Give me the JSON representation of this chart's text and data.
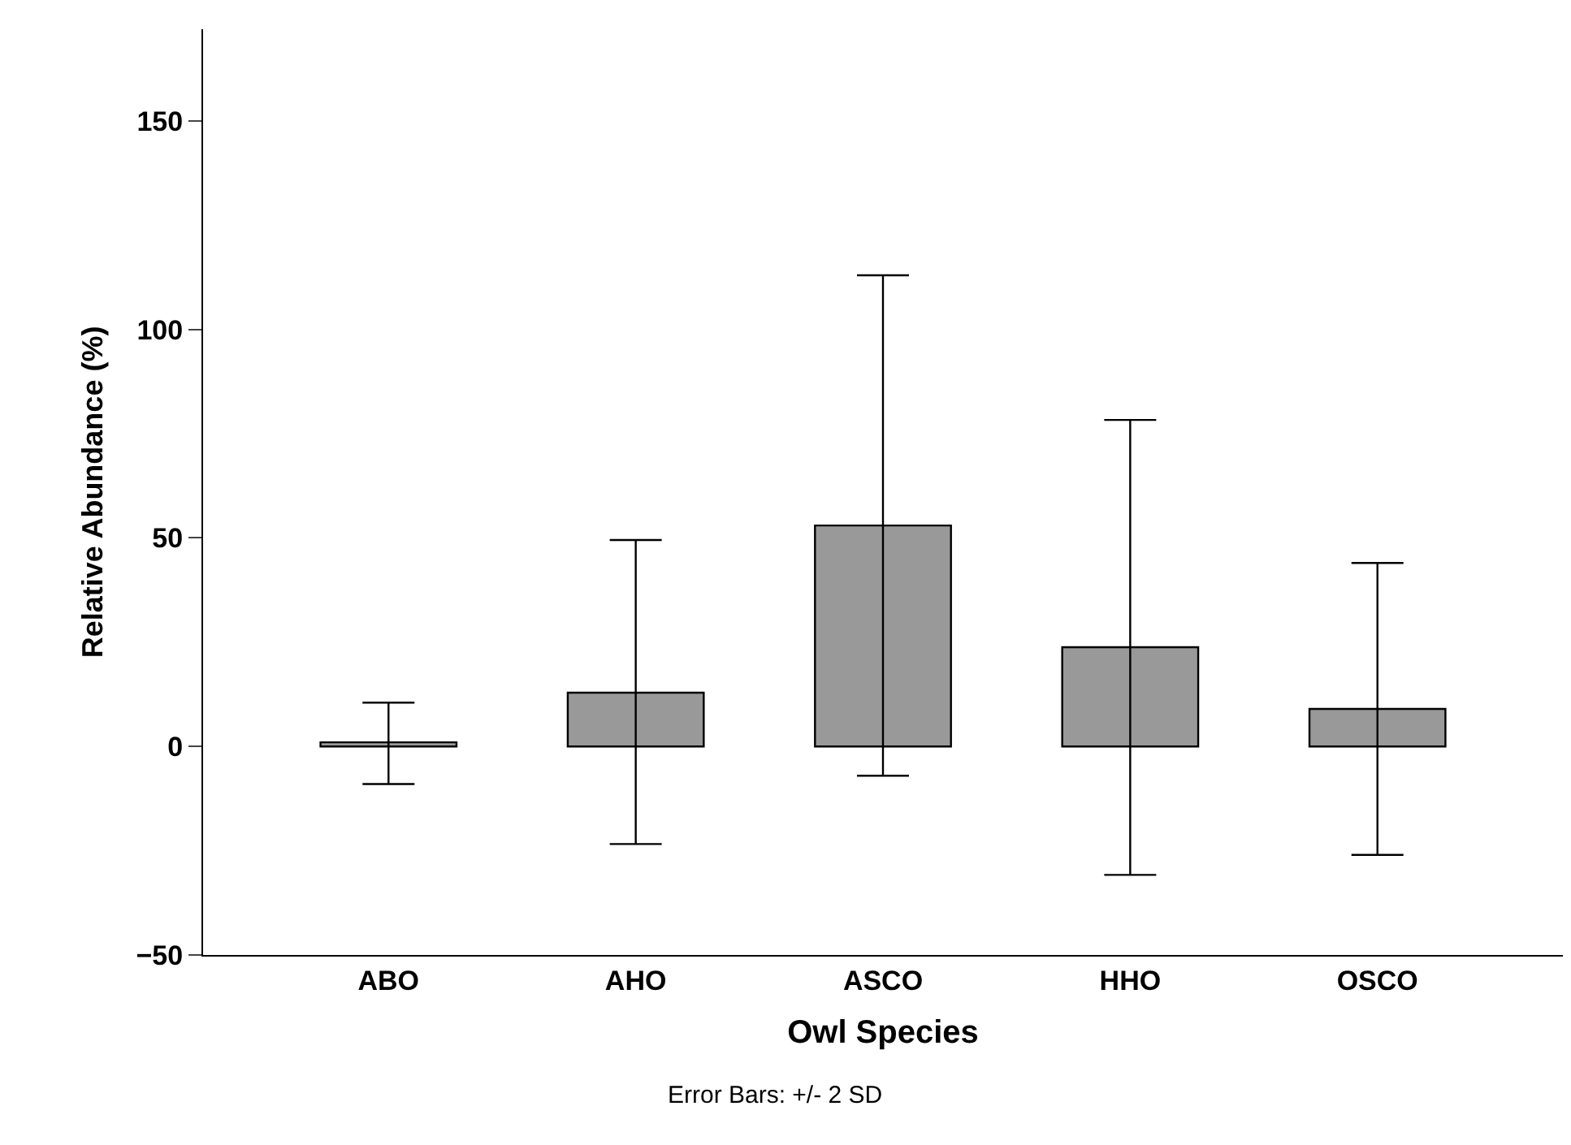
{
  "chart_data": {
    "type": "bar",
    "xlabel": "Owl Species",
    "ylabel": "Relative Abundance (%)",
    "categories": [
      "ABO",
      "AHO",
      "ASCO",
      "HHO",
      "OSCO"
    ],
    "values": [
      1,
      12.9,
      53,
      23.8,
      9
    ],
    "errors": [
      [
        -9,
        10.5
      ],
      [
        -23.4,
        49.5
      ],
      [
        -7,
        113
      ],
      [
        -30.8,
        78.3
      ],
      [
        -26,
        44
      ]
    ],
    "color": "#999999",
    "ylim": [
      -50,
      172
    ],
    "yticks": [
      -50,
      0,
      50,
      100,
      150
    ],
    "annotations": [
      "Error Bars: +/- 2 SD"
    ]
  }
}
